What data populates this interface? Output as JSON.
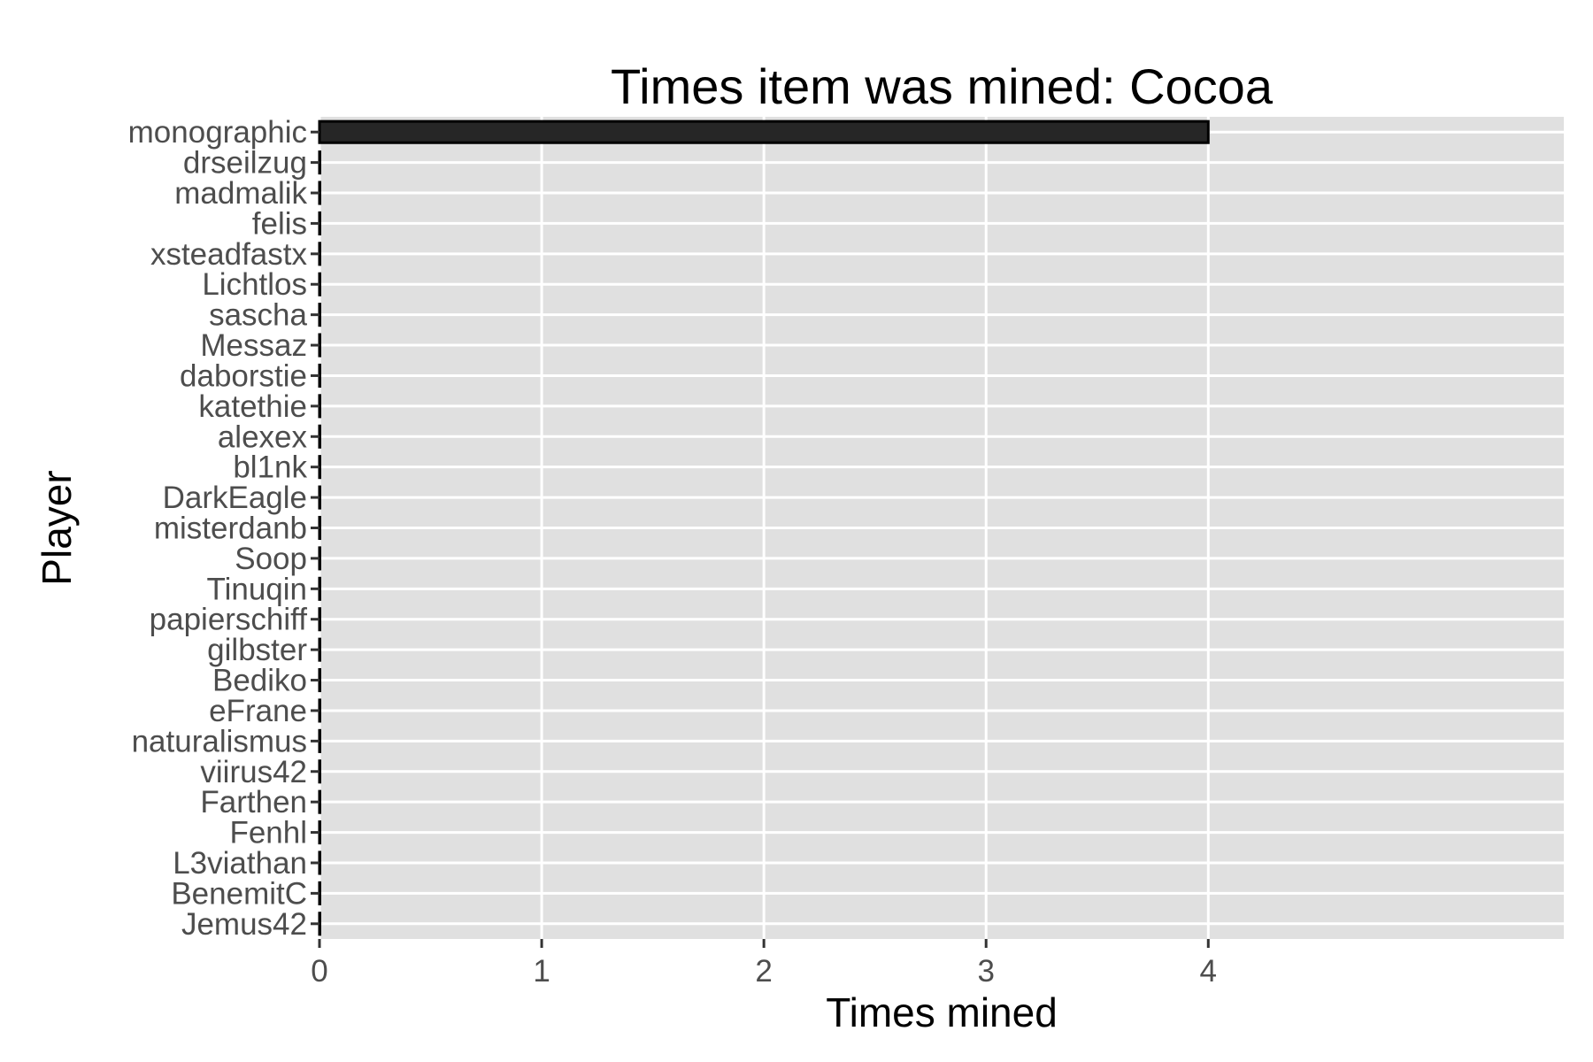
{
  "chart_data": {
    "type": "bar",
    "orientation": "horizontal",
    "title": "Times item was mined: Cocoa",
    "xlabel": "Times mined",
    "ylabel": "Player",
    "xlim": [
      0,
      5.6
    ],
    "x_ticks": [
      0,
      1,
      2,
      3,
      4
    ],
    "grid": true,
    "legend": "none",
    "categories": [
      "monographic",
      "drseilzug",
      "madmalik",
      "felis",
      "xsteadfastx",
      "Lichtlos",
      "sascha",
      "Messaz",
      "daborstie",
      "katethie",
      "alexex",
      "bl1nk",
      "DarkEagle",
      "misterdanb",
      "Soop",
      "Tinuqin",
      "papierschiff",
      "gilbster",
      "Bediko",
      "eFrane",
      "naturalismus",
      "viirus42",
      "Farthen",
      "Fenhl",
      "L3viathan",
      "BenemitC",
      "Jemus42"
    ],
    "values": [
      4,
      0,
      0,
      0,
      0,
      0,
      0,
      0,
      0,
      0,
      0,
      0,
      0,
      0,
      0,
      0,
      0,
      0,
      0,
      0,
      0,
      0,
      0,
      0,
      0,
      0,
      0
    ],
    "colors": {
      "panel": "#e0e0e0",
      "grid": "#ffffff",
      "bar_fill": "#262626",
      "bar_stroke": "#000000",
      "tick_label": "#4d4d4d",
      "tick": "#333333"
    }
  }
}
